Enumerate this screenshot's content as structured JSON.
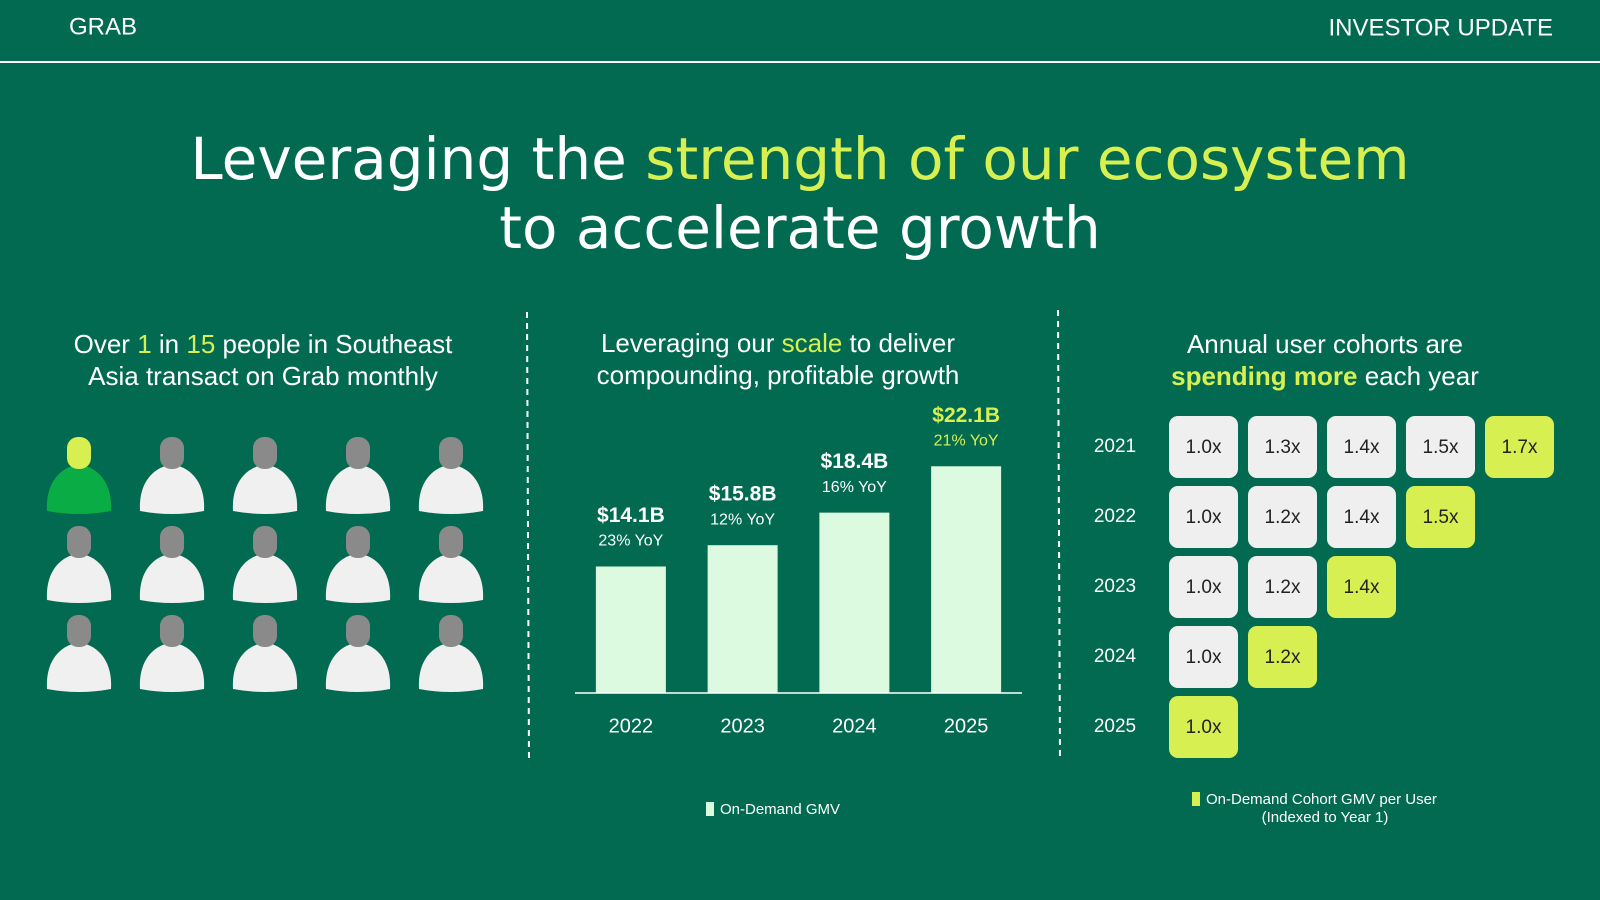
{
  "header": {
    "brand": "GRAB",
    "label": "INVESTOR UPDATE"
  },
  "title": [
    [
      {
        "text": "Leveraging the "
      },
      {
        "text": "strength of our ecosystem",
        "hl": true
      }
    ],
    [
      {
        "text": "to accelerate growth"
      }
    ]
  ],
  "reach": {
    "heading": [
      [
        {
          "text": "Over "
        },
        {
          "text": "1",
          "hl": true
        },
        {
          "text": " in "
        },
        {
          "text": "15",
          "hl": true
        },
        {
          "text": " people in Southeast"
        }
      ],
      [
        {
          "text": "Asia transact on Grab monthly"
        }
      ]
    ]
  },
  "chart_data": {
    "type": "bar",
    "heading": [
      [
        {
          "text": "Leveraging our "
        },
        {
          "text": "scale",
          "hl": true
        },
        {
          "text": " to deliver"
        }
      ],
      [
        {
          "text": "compounding, profitable growth"
        }
      ]
    ],
    "categories": [
      "2022",
      "2023",
      "2024",
      "2025"
    ],
    "values": [
      14.1,
      15.8,
      18.4,
      22.1
    ],
    "value_labels": [
      "$14.1B",
      "$15.8B",
      "$18.4B",
      "$22.1B"
    ],
    "annotations": [
      "23% YoY",
      "12% YoY",
      "16% YoY",
      "21% YoY"
    ],
    "ylim": [
      4,
      23
    ],
    "color": "#dbfadf",
    "highlight_color": "#d8ef52",
    "legend": "On-Demand GMV"
  },
  "cohorts": {
    "heading": [
      [
        {
          "text": "Annual user cohorts are"
        }
      ],
      [
        {
          "text": "spending more",
          "hl": true
        },
        {
          "text": " each year"
        }
      ]
    ],
    "rows": [
      [
        "2021",
        "1.0x",
        "1.3x",
        "1.4x",
        "1.5x",
        "1.7x"
      ],
      [
        "2022",
        "1.0x",
        "1.2x",
        "1.4x",
        "1.5x"
      ],
      [
        "2023",
        "1.0x",
        "1.2x",
        "1.4x"
      ],
      [
        "2024",
        "1.0x",
        "1.2x"
      ],
      [
        "2025",
        "1.0x"
      ]
    ],
    "legend": [
      "On-Demand Cohort GMV per User",
      "(Indexed to Year 1)"
    ]
  }
}
